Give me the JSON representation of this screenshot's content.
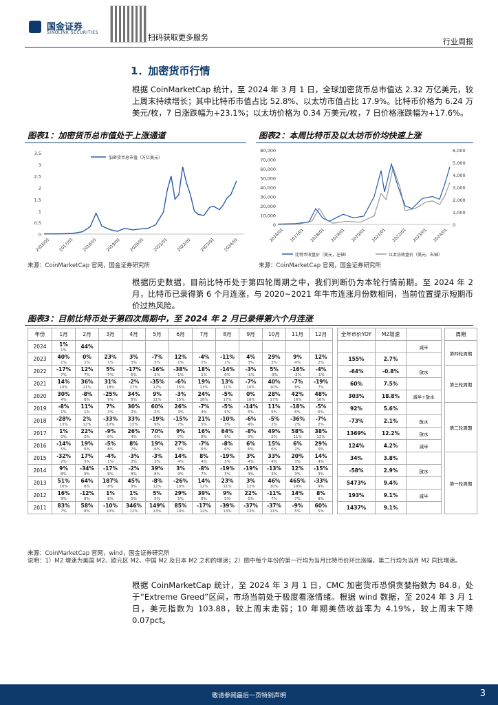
{
  "header": {
    "brand_cn": "国金证券",
    "brand_en": "SINOLINK SECURITIES",
    "qr_text": "扫码获取更多服务",
    "right": "行业周报"
  },
  "section_title": "1．加密货币行情",
  "para1": "根据 CoinMarketCap 统计，至 2024 年 3 月 1 日，全球加密货币总市值达 2.32 万亿美元，较上周末持续增长；其中比特币市值占比 52.8%、以太坊市值占比 17.9%。比特币价格为 6.24 万美元/枚，7 日涨跌幅为+23.1%；以太坊价格为 0.34 万美元/枚，7 日价格涨跌幅为+17.6%。",
  "fig1": {
    "title": "图表1：加密货币总市值处于上涨通道",
    "legend": "加密货币总市值（万亿美元）",
    "y_ticks": [
      "3.5",
      "3",
      "2.5",
      "2",
      "1.5",
      "1",
      "0.5",
      "0"
    ],
    "x_ticks": [
      "2016/01",
      "2017/01",
      "2018/01",
      "2019/01",
      "2020/01",
      "2021/01",
      "2022/01",
      "2023/01",
      "2024/01"
    ]
  },
  "fig2": {
    "title": "图表2：本周比特币及以太坊币价均快速上涨",
    "left_ticks": [
      "80,000",
      "70,000",
      "60,000",
      "50,000",
      "40,000",
      "30,000",
      "20,000",
      "10,000",
      "0"
    ],
    "right_ticks": [
      "6,000",
      "5,000",
      "4,000",
      "3,000",
      "2,000",
      "1,000",
      "0"
    ],
    "x_ticks": [
      "2016/01",
      "2017/01",
      "2018/01",
      "2019/01",
      "2020/01",
      "2021/01",
      "2022/01",
      "2023/01",
      "2024/01"
    ],
    "legend1": "比特币收盘价（美元，左轴）",
    "legend2": "以太坊收盘价（美元，右轴）"
  },
  "src1": "来源：CoinMarketCap 官网，国金证券研究所",
  "src2": "来源：CoinMarketCap 官网，国金证券研究所",
  "para2": "根据历史数据，目前比特币处于第四轮周期之中，我们判断仍为本轮行情前期。至 2024 年 2 月，比特币已录得第 6 个月连涨，与 2020~2021 年牛市连涨月份数相同，当前位置提示短期币价过热风险。",
  "fig3": {
    "title": "图表3：目前比特币处于第四次周期中，至 2024 年 2 月已录得第六个月连涨",
    "headers": [
      "年份",
      "1月",
      "2月",
      "3月",
      "4月",
      "5月",
      "6月",
      "7月",
      "8月",
      "9月",
      "10月",
      "11月",
      "12月",
      "全年币价YOY",
      "M2增速",
      "",
      "周期"
    ],
    "rows": [
      {
        "year": "2024",
        "m": [
          "1%",
          "44%",
          "",
          "",
          "",
          "",
          "",
          "",
          "",
          "",
          "",
          ""
        ],
        "s": [
          "1%",
          "",
          "",
          "",
          "",
          "",
          "",
          "",
          "",
          "",
          "",
          ""
        ],
        "yoy": "",
        "m2": "",
        "note": "减半"
      },
      {
        "year": "2023",
        "m": [
          "40%",
          "0%",
          "23%",
          "3%",
          "-7%",
          "12%",
          "-4%",
          "-11%",
          "4%",
          "29%",
          "9%",
          "12%"
        ],
        "s": [
          "1%",
          "2%",
          "1%",
          "3%",
          "5%",
          "1%",
          "2%",
          "2%",
          "3%",
          "3%",
          "4%",
          "2%"
        ],
        "yoy": "155%",
        "m2": "2.7%",
        "note": ""
      },
      {
        "year": "2022",
        "m": [
          "-17%",
          "12%",
          "5%",
          "-17%",
          "-16%",
          "-38%",
          "18%",
          "-14%",
          "-3%",
          "5%",
          "-16%",
          "-4%"
        ],
        "s": [
          "7%",
          "7%",
          "7%",
          "5%",
          "2%",
          "1%",
          "1%",
          "0%",
          "-1%",
          "-3%",
          "-2%",
          "-1%"
        ],
        "yoy": "-64%",
        "m2": "-0.8%",
        "note": "放水"
      },
      {
        "year": "2021",
        "m": [
          "14%",
          "36%",
          "31%",
          "-2%",
          "-35%",
          "-6%",
          "19%",
          "13%",
          "-7%",
          "40%",
          "-7%",
          "-19%"
        ],
        "s": [
          "10%",
          "21%",
          "18%",
          "17%",
          "17%",
          "15%",
          "13%",
          "11%",
          "10%",
          "10%",
          "8%",
          "7%"
        ],
        "yoy": "60%",
        "m2": "7.5%",
        "note": ""
      },
      {
        "year": "2020",
        "m": [
          "30%",
          "-8%",
          "-25%",
          "34%",
          "9%",
          "-3%",
          "24%",
          "-5%",
          "0%",
          "28%",
          "42%",
          "48%"
        ],
        "s": [
          "4%",
          "8%",
          "9%",
          "8%",
          "11%",
          "15%",
          "16%",
          "17%",
          "18%",
          "17%",
          "16%",
          "16%"
        ],
        "yoy": "303%",
        "m2": "18.8%",
        "note": "减半+放水"
      },
      {
        "year": "2019",
        "m": [
          "-8%",
          "11%",
          "7%",
          "30%",
          "60%",
          "26%",
          "-7%",
          "-5%",
          "-14%",
          "11%",
          "-18%",
          "-5%"
        ],
        "s": [
          "1%",
          "1%",
          "2%",
          "2%",
          "2%",
          "3%",
          "4%",
          "5%",
          "5%",
          "5%",
          "6%",
          "6%"
        ],
        "yoy": "92%",
        "m2": "5.6%",
        "note": ""
      },
      {
        "year": "2018",
        "m": [
          "-28%",
          "2%",
          "-33%",
          "33%",
          "-19%",
          "-15%",
          "21%",
          "-10%",
          "-6%",
          "-5%",
          "-36%",
          "-7%"
        ],
        "s": [
          "13%",
          "12%",
          "10%",
          "12%",
          "9%",
          "7%",
          "5%",
          "3%",
          "4%",
          "2%",
          "2%",
          "2%"
        ],
        "yoy": "-73%",
        "m2": "2.1%",
        "note": "放水"
      },
      {
        "year": "2017",
        "m": [
          "1%",
          "22%",
          "-9%",
          "26%",
          "70%",
          "9%",
          "16%",
          "64%",
          "-8%",
          "49%",
          "58%",
          "38%"
        ],
        "s": [
          "0%",
          "0%",
          "0%",
          "4%",
          "0%",
          "7%",
          "8%",
          "9%",
          "0%",
          "2%",
          "11%",
          "12%"
        ],
        "yoy": "1369%",
        "m2": "12.2%",
        "note": "放水"
      },
      {
        "year": "2016",
        "m": [
          "-14%",
          "19%",
          "-5%",
          "8%",
          "19%",
          "27%",
          "-7%",
          "-8%",
          "6%",
          "15%",
          "6%",
          "29%"
        ],
        "s": [
          "5%",
          "6%",
          "8%",
          "7%",
          "6%",
          "6%",
          "6%",
          "6%",
          "6%",
          "6%",
          "2%",
          "0%"
        ],
        "yoy": "124%",
        "m2": "4.2%",
        "note": "减半"
      },
      {
        "year": "2015",
        "m": [
          "-32%",
          "17%",
          "-4%",
          "-3%",
          "-3%",
          "14%",
          "8%",
          "-19%",
          "3%",
          "33%",
          "20%",
          "14%"
        ],
        "s": [
          "2%",
          "3%",
          "1%",
          "3%",
          "3%",
          "4%",
          "4%",
          "3%",
          "4%",
          "4%",
          "3%",
          "4%"
        ],
        "yoy": "34%",
        "m2": "3.8%",
        "note": ""
      },
      {
        "year": "2014",
        "m": [
          "9%",
          "-34%",
          "-17%",
          "-2%",
          "39%",
          "3%",
          "-8%",
          "-19%",
          "-19%",
          "-13%",
          "12%",
          "-15%"
        ],
        "s": [
          "8%",
          "9%",
          "8%",
          "8%",
          "8%",
          "9%",
          "7%",
          "3%",
          "3%",
          "3%",
          "3%",
          "3%"
        ],
        "yoy": "-58%",
        "m2": "2.9%",
        "note": "放水"
      },
      {
        "year": "2013",
        "m": [
          "51%",
          "64%",
          "187%",
          "45%",
          "-8%",
          "-26%",
          "14%",
          "23%",
          "3%",
          "46%",
          "465%",
          "-33%"
        ],
        "s": [
          "10%",
          "8%",
          "8%",
          "9%",
          "12%",
          "10%",
          "12%",
          "11%",
          "12%",
          "10%",
          "10%",
          "9%"
        ],
        "yoy": "5473%",
        "m2": "9.4%",
        "note": ""
      },
      {
        "year": "2012",
        "m": [
          "16%",
          "-12%",
          "1%",
          "1%",
          "5%",
          "29%",
          "39%",
          "9%",
          "22%",
          "-11%",
          "14%",
          "8%"
        ],
        "s": [
          "9%",
          "8%",
          "8%",
          "5%",
          "5%",
          "5%",
          "8%",
          "5%",
          "5%",
          "7%",
          "7%",
          "9%"
        ],
        "yoy": "193%",
        "m2": "9.1%",
        "note": "减半"
      },
      {
        "year": "2011",
        "m": [
          "83%",
          "58%",
          "-10%",
          "346%",
          "149%",
          "85%",
          "-17%",
          "-39%",
          "-37%",
          "-37%",
          "-9%",
          "60%"
        ],
        "s": [
          "7%",
          "8%",
          "10%",
          "12%",
          "13%",
          "14%",
          "12%",
          "13%",
          "13%",
          "11%",
          "5%",
          "5%"
        ],
        "yoy": "1437%",
        "m2": "9.1%",
        "note": ""
      }
    ],
    "cycles": [
      {
        "label": "第四轮周期"
      },
      {
        "label": "第三轮周期"
      },
      {
        "label": "第二轮周期"
      },
      {
        "label": "第一轮周期"
      }
    ]
  },
  "src3": "来源：CoinMarketCap 官网，wind，国金证券研究所",
  "note3": "说明：1）M2 增速为美国 M2、欧元区 M2、中国 M2 及日本 M2 之和的增速；2）图中每个年份的第一行均为当月比特币价环比涨幅，第二行均为当月 M2 同比增速。",
  "para3": "根据 CoinMarketCap 统计，至 2024 年 3 月 1 日，CMC 加密货币恐惧贪婪指数为 84.8，处于“Extreme Greed”区间，市场当前处于极度看涨情绪。根据 wind 数据，至 2024 年 3 月 1 日，美元指数为 103.88，较上周末走弱；10 年期美债收益率为 4.19%，较上周末下降 0.07pct。",
  "footer": {
    "text": "敬请参阅最后一页特别声明",
    "page": "3"
  },
  "colors": {
    "brand": "#0e3a6b",
    "btc": "#2a5aa6",
    "eth": "#9a9a9a"
  }
}
